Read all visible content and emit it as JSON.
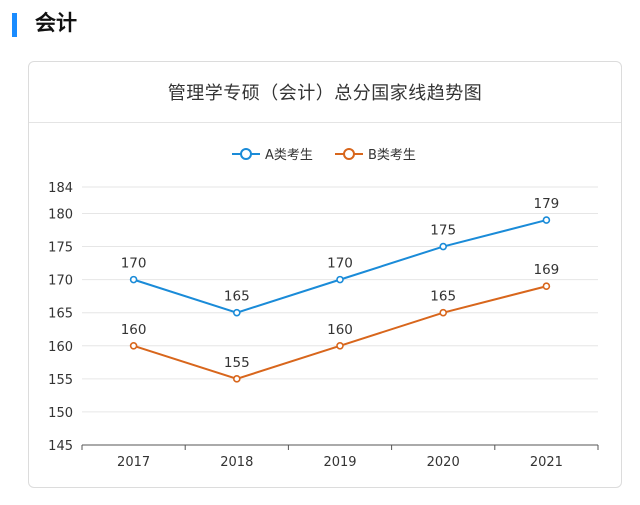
{
  "section": {
    "title": "会计"
  },
  "chart_data": {
    "type": "line",
    "title": "管理学专硕（会计）总分国家线趋势图",
    "categories": [
      "2017",
      "2018",
      "2019",
      "2020",
      "2021"
    ],
    "series": [
      {
        "name": "A类考生",
        "values": [
          170,
          165,
          170,
          175,
          179
        ],
        "color": "#1a8bd8"
      },
      {
        "name": "B类考生",
        "values": [
          160,
          155,
          160,
          165,
          169
        ],
        "color": "#d8661c"
      }
    ],
    "yticks": [
      145,
      150,
      155,
      160,
      165,
      170,
      175,
      180,
      184
    ],
    "ylim": [
      145,
      184
    ],
    "xlabel": "",
    "ylabel": "",
    "grid": true,
    "legend_position": "top"
  }
}
